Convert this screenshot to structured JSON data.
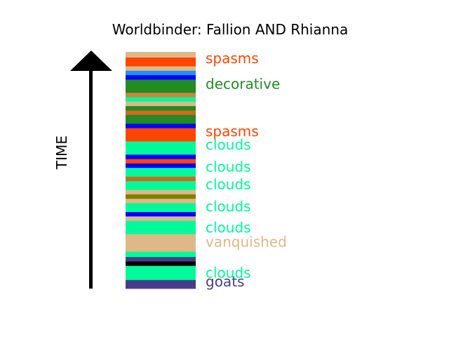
{
  "chart_data": {
    "type": "bar",
    "title": "Worldbinder: Fallion AND Rhianna",
    "ylabel": "TIME",
    "xlabel": "",
    "colors": {
      "goats": "#483d8b",
      "clouds": "#00fa9a",
      "black": "#000000",
      "vanquished": "#deb887",
      "blue": "#0000ff",
      "olive": "#808000",
      "chocolate": "#d2691e",
      "spasms": "#ff4500",
      "decorative": "#228b22",
      "peru": "#cd853f",
      "dodgerblue": "#1e90ff"
    },
    "segments": [
      {
        "color": "goats",
        "start": 0.0,
        "end": 1.0
      },
      {
        "color": "clouds",
        "start": 1.0,
        "end": 2.6
      },
      {
        "color": "black",
        "start": 2.6,
        "end": 3.1
      },
      {
        "color": "goats",
        "start": 3.1,
        "end": 3.6
      },
      {
        "color": "clouds",
        "start": 3.6,
        "end": 4.2
      },
      {
        "color": "vanquished",
        "start": 4.2,
        "end": 6.2
      },
      {
        "color": "clouds",
        "start": 6.2,
        "end": 7.7
      },
      {
        "color": "vanquished",
        "start": 7.7,
        "end": 8.2
      },
      {
        "color": "blue",
        "start": 8.2,
        "end": 8.7
      },
      {
        "color": "clouds",
        "start": 8.7,
        "end": 9.7
      },
      {
        "color": "vanquished",
        "start": 9.7,
        "end": 10.2
      },
      {
        "color": "olive",
        "start": 10.2,
        "end": 10.7
      },
      {
        "color": "vanquished",
        "start": 10.7,
        "end": 11.2
      },
      {
        "color": "clouds",
        "start": 11.2,
        "end": 12.2
      },
      {
        "color": "chocolate",
        "start": 12.2,
        "end": 12.7
      },
      {
        "color": "clouds",
        "start": 12.7,
        "end": 13.7
      },
      {
        "color": "blue",
        "start": 13.7,
        "end": 14.2
      },
      {
        "color": "spasms",
        "start": 14.2,
        "end": 14.7
      },
      {
        "color": "blue",
        "start": 14.7,
        "end": 15.2
      },
      {
        "color": "clouds",
        "start": 15.2,
        "end": 16.7
      },
      {
        "color": "spasms",
        "start": 16.7,
        "end": 18.2
      },
      {
        "color": "blue",
        "start": 18.2,
        "end": 18.7
      },
      {
        "color": "decorative",
        "start": 18.7,
        "end": 19.7
      },
      {
        "color": "chocolate",
        "start": 19.7,
        "end": 20.2
      },
      {
        "color": "decorative",
        "start": 20.2,
        "end": 20.7
      },
      {
        "color": "vanquished",
        "start": 20.7,
        "end": 21.2
      },
      {
        "color": "clouds",
        "start": 21.2,
        "end": 21.7
      },
      {
        "color": "peru",
        "start": 21.7,
        "end": 22.2
      },
      {
        "color": "decorative",
        "start": 22.2,
        "end": 23.7
      },
      {
        "color": "blue",
        "start": 23.7,
        "end": 24.2
      },
      {
        "color": "dodgerblue",
        "start": 24.2,
        "end": 24.7
      },
      {
        "color": "vanquished",
        "start": 24.7,
        "end": 25.2
      },
      {
        "color": "spasms",
        "start": 25.2,
        "end": 26.2
      },
      {
        "color": "vanquished",
        "start": 26.2,
        "end": 26.8
      }
    ],
    "labels": [
      {
        "text": "goats",
        "color": "goats",
        "at": 0.8
      },
      {
        "text": "clouds",
        "color": "clouds",
        "at": 1.8
      },
      {
        "text": "vanquished",
        "color": "vanquished",
        "at": 5.3
      },
      {
        "text": "clouds",
        "color": "clouds",
        "at": 6.9
      },
      {
        "text": "clouds",
        "color": "clouds",
        "at": 9.3
      },
      {
        "text": "clouds",
        "color": "clouds",
        "at": 11.8
      },
      {
        "text": "clouds",
        "color": "clouds",
        "at": 13.8
      },
      {
        "text": "clouds",
        "color": "clouds",
        "at": 16.3
      },
      {
        "text": "spasms",
        "color": "spasms",
        "at": 17.8
      },
      {
        "text": "decorative",
        "color": "decorative",
        "at": 23.2
      },
      {
        "text": "spasms",
        "color": "spasms",
        "at": 26.1
      }
    ]
  }
}
